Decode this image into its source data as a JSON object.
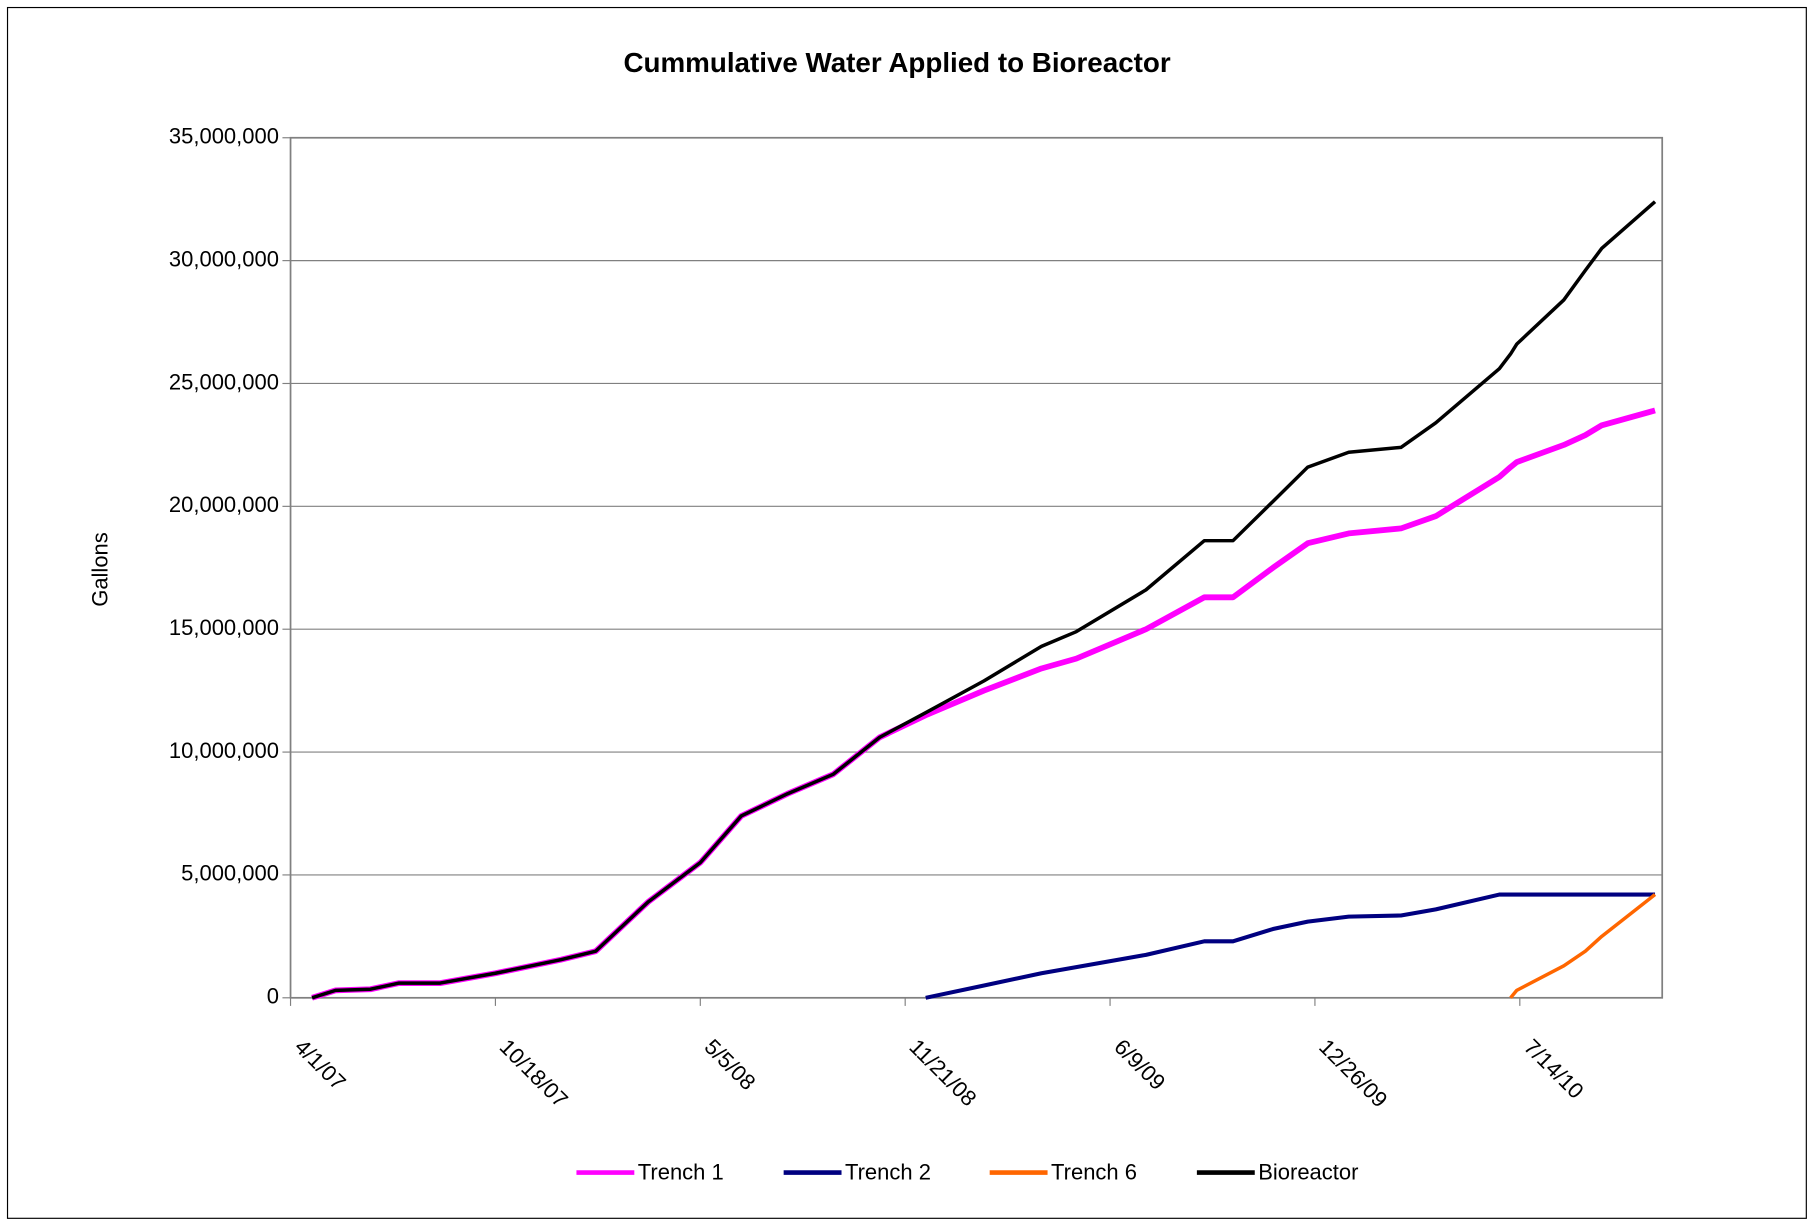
{
  "chart_data": {
    "type": "line",
    "title": "Cummulative Water Applied to Bioreactor",
    "y_label": "Gallons",
    "x": [
      "2007-04-22",
      "2007-05-15",
      "2007-06-18",
      "2007-07-16",
      "2007-08-25",
      "2007-10-18",
      "2007-12-21",
      "2008-01-24",
      "2008-03-15",
      "2008-05-05",
      "2008-06-14",
      "2008-07-29",
      "2008-09-12",
      "2008-10-27",
      "2008-12-11",
      "2009-02-06",
      "2009-04-03",
      "2009-05-07",
      "2009-07-14",
      "2009-09-09",
      "2009-10-07",
      "2009-11-15",
      "2009-12-19",
      "2010-01-28",
      "2010-03-20",
      "2010-04-23",
      "2010-06-24",
      "2010-07-05",
      "2010-07-11",
      "2010-08-26",
      "2010-09-16",
      "2010-10-02",
      "2010-11-23"
    ],
    "xlim": [
      "2007-04-01",
      "2010-11-30"
    ],
    "xticks": [
      {
        "value": "2007-04-01",
        "label": "4/1/07"
      },
      {
        "value": "2007-10-18",
        "label": "10/18/07"
      },
      {
        "value": "2008-05-05",
        "label": "5/5/08"
      },
      {
        "value": "2008-11-21",
        "label": "11/21/08"
      },
      {
        "value": "2009-06-09",
        "label": "6/9/09"
      },
      {
        "value": "2009-12-26",
        "label": "12/26/09"
      },
      {
        "value": "2010-07-14",
        "label": "7/14/10"
      }
    ],
    "ylim": [
      0,
      35000000
    ],
    "yticks": [
      0,
      {
        "value": 5000000,
        "label": "5,000,000"
      },
      {
        "value": 10000000,
        "label": "10,000,000"
      },
      {
        "value": 15000000,
        "label": "15,000,000"
      },
      {
        "value": 20000000,
        "label": "20,000,000"
      },
      {
        "value": 25000000,
        "label": "25,000,000"
      },
      {
        "value": 30000000,
        "label": "30,000,000"
      },
      {
        "value": 35000000,
        "label": "35,000,000"
      }
    ],
    "grid": true,
    "legend": "bottom",
    "series": [
      {
        "name": "Trench 1",
        "color": "#ff00ff",
        "values": [
          0,
          300000,
          350000,
          600000,
          600000,
          1000000,
          1550000,
          1900000,
          3900000,
          5500000,
          7400000,
          8300000,
          9100000,
          10600000,
          11500000,
          12500000,
          13400000,
          13800000,
          15000000,
          16300000,
          16300000,
          17500000,
          18500000,
          18900000,
          19100000,
          19600000,
          21200000,
          21600000,
          21800000,
          22500000,
          22900000,
          23300000,
          23900000
        ]
      },
      {
        "name": "Trench 2",
        "color": "#000080",
        "values": [
          null,
          null,
          null,
          null,
          null,
          null,
          null,
          null,
          null,
          null,
          null,
          null,
          null,
          null,
          0,
          500000,
          1000000,
          1250000,
          1750000,
          2300000,
          2300000,
          2800000,
          3100000,
          3300000,
          3350000,
          3600000,
          4200000,
          4200000,
          4200000,
          4200000,
          4200000,
          4200000,
          4200000
        ]
      },
      {
        "name": "Trench 6",
        "color": "#ff6600",
        "values": [
          null,
          null,
          null,
          null,
          null,
          null,
          null,
          null,
          null,
          null,
          null,
          null,
          null,
          null,
          null,
          null,
          null,
          null,
          null,
          null,
          null,
          null,
          null,
          null,
          null,
          null,
          null,
          0,
          300000,
          1300000,
          1900000,
          2500000,
          4200000
        ]
      },
      {
        "name": "Bioreactor",
        "color": "#000000",
        "values": [
          0,
          300000,
          350000,
          600000,
          600000,
          1000000,
          1550000,
          1900000,
          3900000,
          5500000,
          7400000,
          8300000,
          9100000,
          10600000,
          11600000,
          12900000,
          14300000,
          14900000,
          16600000,
          18600000,
          18600000,
          20200000,
          21600000,
          22200000,
          22400000,
          23400000,
          25600000,
          26200000,
          26600000,
          28400000,
          29600000,
          30500000,
          32400000
        ]
      }
    ]
  }
}
